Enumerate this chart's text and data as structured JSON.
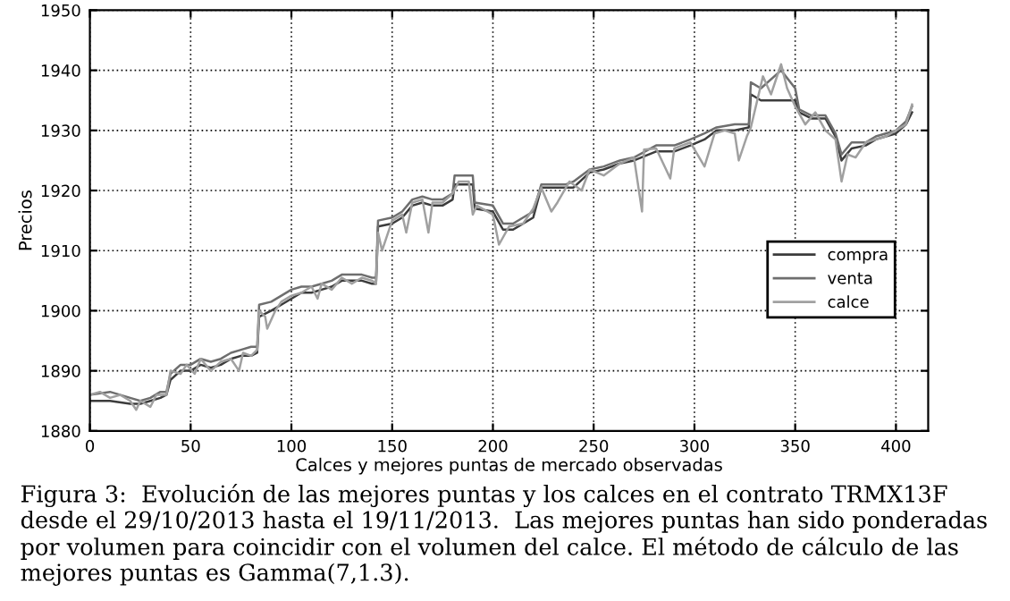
{
  "chart_data": {
    "type": "line",
    "xlabel": "Calces y mejores puntas de mercado observadas",
    "ylabel": "Precios",
    "xlim": [
      0,
      416
    ],
    "xticks": [
      0,
      50,
      100,
      150,
      200,
      250,
      300,
      350,
      400
    ],
    "ylim": [
      1880,
      1950
    ],
    "yticks": [
      1880,
      1890,
      1900,
      1910,
      1920,
      1930,
      1940,
      1950
    ],
    "grid": true,
    "legend": "right",
    "line_style": "solid",
    "marker": "none",
    "series": [
      {
        "name": "compra",
        "color": "#3c3c3c",
        "x": [
          0,
          10,
          20,
          25,
          30,
          35,
          38,
          40,
          45,
          50,
          55,
          60,
          65,
          70,
          75,
          80,
          83,
          84,
          90,
          95,
          100,
          105,
          110,
          115,
          120,
          125,
          130,
          135,
          140,
          142,
          143,
          150,
          155,
          160,
          165,
          170,
          175,
          180,
          181,
          190,
          191,
          200,
          205,
          210,
          215,
          220,
          224,
          236,
          240,
          248,
          255,
          263,
          270,
          281,
          290,
          298,
          305,
          311,
          320,
          327,
          328,
          333,
          350,
          352,
          358,
          365,
          370,
          373,
          378,
          385,
          390,
          395,
          400,
          405,
          408
        ],
        "values": [
          1885,
          1885,
          1884.5,
          1884.5,
          1885,
          1885.5,
          1886,
          1888.5,
          1890,
          1890,
          1891,
          1890.5,
          1891,
          1892,
          1892.5,
          1892.5,
          1893,
          1899,
          1900,
          1901,
          1902,
          1903,
          1903,
          1903.5,
          1904,
          1905,
          1905,
          1905,
          1904.5,
          1904.5,
          1914,
          1914.5,
          1915.5,
          1917.5,
          1918,
          1917.5,
          1917.5,
          1918.5,
          1921,
          1921,
          1917,
          1916.5,
          1913.5,
          1913.5,
          1914.5,
          1915.5,
          1920.5,
          1920.5,
          1920.5,
          1923,
          1923.5,
          1924.5,
          1925,
          1926.5,
          1926.5,
          1927.5,
          1928.5,
          1930,
          1930,
          1930.5,
          1936,
          1935,
          1935,
          1933,
          1932,
          1932,
          1929,
          1925,
          1927,
          1927.5,
          1928.5,
          1929,
          1929.5,
          1931,
          1933
        ]
      },
      {
        "name": "venta",
        "color": "#6e6e6e",
        "x": [
          0,
          10,
          20,
          25,
          30,
          35,
          38,
          40,
          45,
          50,
          55,
          60,
          65,
          70,
          75,
          80,
          83,
          84,
          90,
          95,
          100,
          105,
          110,
          115,
          120,
          125,
          130,
          135,
          140,
          142,
          143,
          150,
          155,
          160,
          165,
          170,
          175,
          180,
          181,
          190,
          191,
          200,
          205,
          210,
          215,
          220,
          224,
          236,
          240,
          248,
          255,
          263,
          270,
          281,
          290,
          298,
          305,
          311,
          320,
          327,
          328,
          333,
          343,
          350,
          352,
          358,
          365,
          370,
          373,
          378,
          385,
          390,
          395,
          400,
          405,
          408
        ],
        "values": [
          1886,
          1886.5,
          1885.5,
          1885,
          1885.5,
          1886.5,
          1886.5,
          1889.5,
          1891,
          1891,
          1892,
          1891.5,
          1892,
          1893,
          1893.5,
          1894,
          1894,
          1901,
          1901.5,
          1902.5,
          1903.5,
          1904,
          1904,
          1904.5,
          1905,
          1906,
          1906,
          1906,
          1905.5,
          1905.5,
          1915,
          1915.5,
          1916.5,
          1918.5,
          1919,
          1918.5,
          1918.5,
          1919.5,
          1922.5,
          1922.5,
          1918,
          1917.5,
          1914.5,
          1914.5,
          1915.5,
          1916.5,
          1921,
          1921,
          1921.5,
          1923.5,
          1924,
          1925,
          1925.5,
          1927.5,
          1927.5,
          1928.5,
          1929.5,
          1930.5,
          1931,
          1931,
          1938,
          1937,
          1940,
          1937,
          1933.5,
          1932.5,
          1932.5,
          1929.5,
          1926,
          1928,
          1928,
          1929,
          1929.5,
          1930,
          1931.5,
          1934
        ]
      },
      {
        "name": "calce",
        "color": "#a0a0a0",
        "x": [
          0,
          5,
          10,
          15,
          20,
          23,
          25,
          30,
          33,
          38,
          40,
          45,
          48,
          52,
          55,
          60,
          65,
          70,
          74,
          76,
          80,
          83,
          84,
          87,
          88,
          92,
          95,
          100,
          105,
          110,
          113,
          115,
          120,
          125,
          130,
          135,
          140,
          142,
          143,
          145,
          150,
          155,
          157,
          160,
          165,
          168,
          170,
          175,
          180,
          183,
          188,
          190,
          192,
          200,
          203,
          208,
          215,
          220,
          224,
          229,
          232,
          238,
          244,
          248,
          255,
          263,
          270,
          274,
          275,
          281,
          288,
          290,
          298,
          305,
          310,
          315,
          320,
          322,
          326,
          328,
          334,
          338,
          343,
          346,
          350,
          355,
          360,
          365,
          370,
          373,
          376,
          380,
          385,
          390,
          395,
          400,
          405,
          408
        ],
        "values": [
          1886,
          1886.5,
          1885.5,
          1886,
          1885,
          1883.5,
          1885,
          1884,
          1886,
          1886,
          1890,
          1889.5,
          1891,
          1889.5,
          1892,
          1890,
          1891.5,
          1892,
          1890,
          1893,
          1892.5,
          1893.5,
          1900,
          1899,
          1897,
          1900,
          1901.5,
          1902.5,
          1903,
          1904,
          1902,
          1904.5,
          1903.5,
          1905.5,
          1904.5,
          1905.5,
          1905,
          1904.5,
          1913,
          1910,
          1915,
          1916,
          1913,
          1918,
          1918.5,
          1913,
          1918,
          1918,
          1919.5,
          1921.5,
          1921.5,
          1916,
          1917.5,
          1916,
          1911,
          1914,
          1914.5,
          1917,
          1920.5,
          1916.5,
          1918,
          1921.5,
          1920,
          1923.5,
          1922.5,
          1924.5,
          1925.5,
          1916.5,
          1926.8,
          1927,
          1922,
          1927,
          1928,
          1924,
          1929.5,
          1930,
          1929.5,
          1925,
          1929,
          1930.5,
          1939,
          1936,
          1941,
          1937,
          1934,
          1931,
          1933,
          1930,
          1928.5,
          1921.5,
          1926,
          1925.5,
          1928,
          1928.5,
          1929,
          1930,
          1931,
          1934.3
        ]
      }
    ],
    "annotations": [
      "Figura 3:  Evolución de las mejores puntas y los calces en el contrato TRMX13F desde el 29/10/2013 hasta el 19/11/2013.  Las mejores puntas han sido ponderadas por volumen para coincidir con el volumen del calce. El método de cálculo de las mejores puntas es Gamma(7,1.3)."
    ]
  }
}
